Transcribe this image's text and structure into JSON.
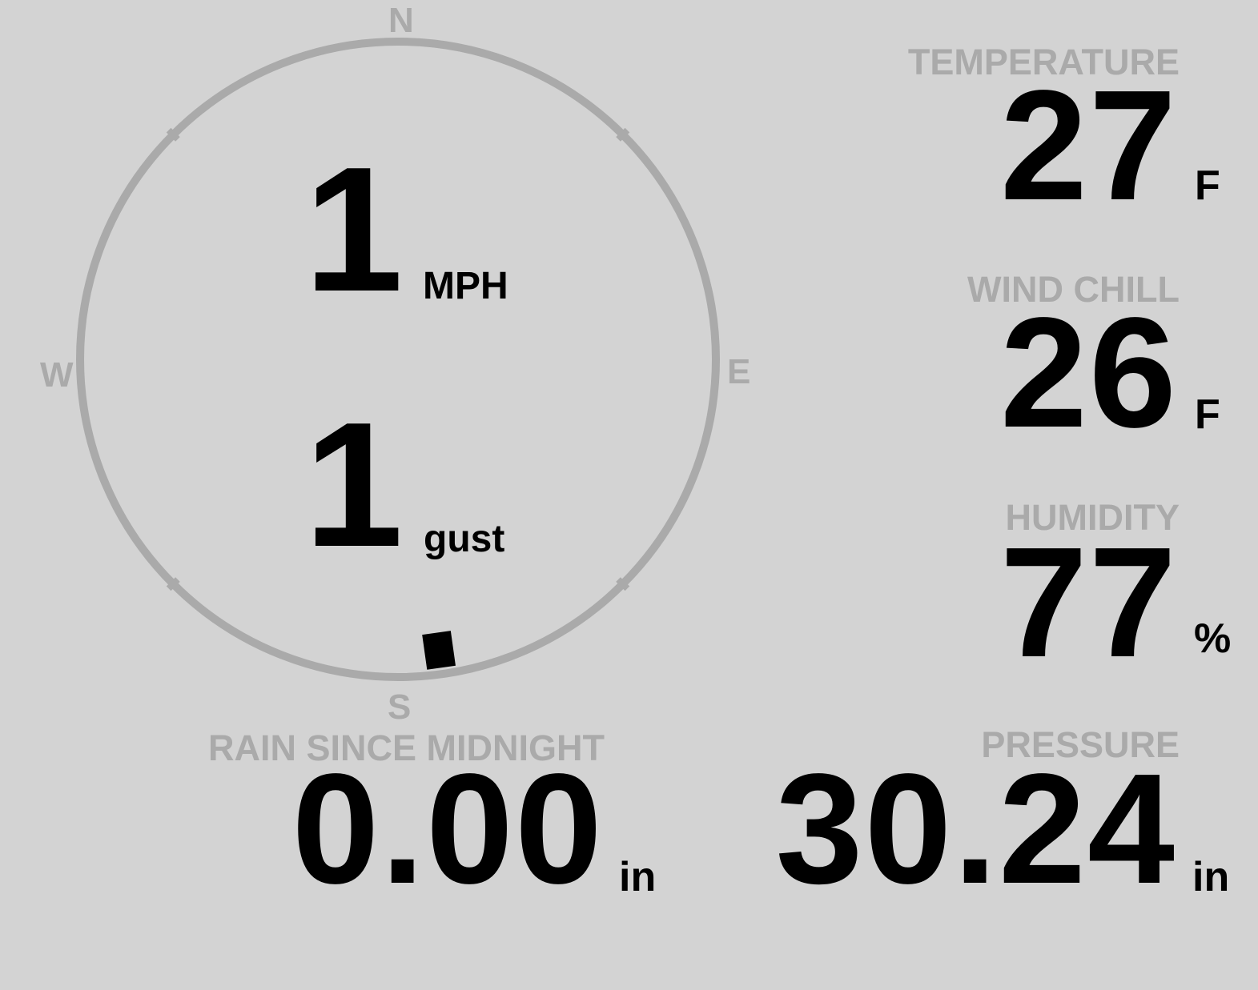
{
  "wind": {
    "compass": {
      "north": "N",
      "east": "E",
      "south": "S",
      "west": "W"
    },
    "speed": "1",
    "speed_unit": "MPH",
    "gust": "1",
    "gust_unit": "gust",
    "direction_deg": 172
  },
  "temperature": {
    "label": "TEMPERATURE",
    "value": "27",
    "unit": "F"
  },
  "wind_chill": {
    "label": "WIND CHILL",
    "value": "26",
    "unit": "F"
  },
  "humidity": {
    "label": "HUMIDITY",
    "value": "77",
    "unit": "%"
  },
  "rain": {
    "label": "RAIN SINCE MIDNIGHT",
    "value": "0.00",
    "unit": "in"
  },
  "pressure": {
    "label": "PRESSURE",
    "value": "30.24",
    "unit": "in"
  },
  "colors": {
    "background": "#d3d3d3",
    "muted": "#aaaaaa",
    "value": "#000000"
  }
}
